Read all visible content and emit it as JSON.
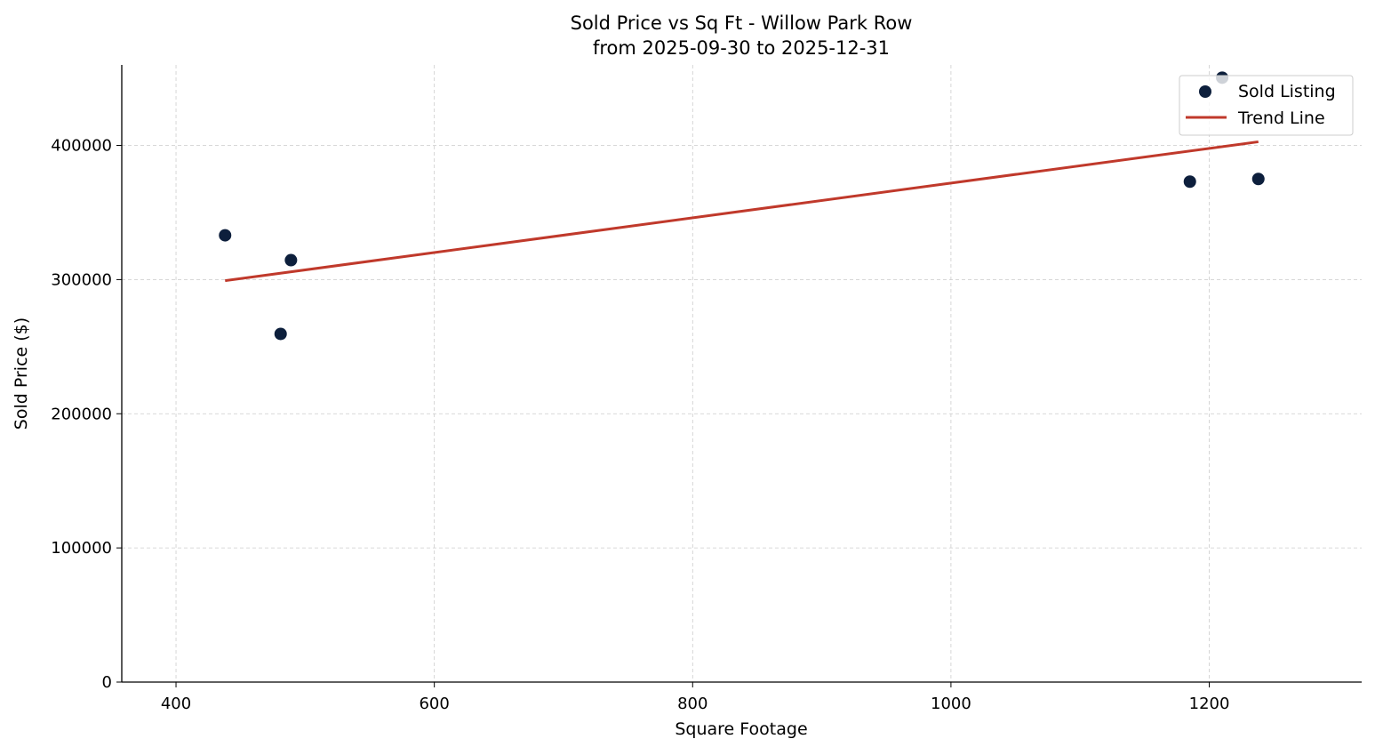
{
  "chart_data": {
    "type": "scatter",
    "title": "Sold Price vs Sq Ft - Willow Park Row",
    "subtitle": "from 2025-09-30 to 2025-12-31",
    "xlabel": "Square Footage",
    "ylabel": "Sold Price ($)",
    "xlim": [
      358,
      1318
    ],
    "ylim": [
      0,
      460000
    ],
    "xticks": [
      400,
      600,
      800,
      1000,
      1200
    ],
    "xtick_labels": [
      "400",
      "600",
      "800",
      "1000",
      "1200"
    ],
    "yticks": [
      0,
      100000,
      200000,
      300000,
      400000
    ],
    "ytick_labels": [
      "0",
      "100000",
      "200000",
      "300000",
      "400000"
    ],
    "grid": true,
    "legend_position": "top-right",
    "series": [
      {
        "name": "Sold Listing",
        "type": "scatter",
        "color": "#0d1f3c",
        "points": [
          {
            "x": 438,
            "y": 333000
          },
          {
            "x": 489,
            "y": 314500
          },
          {
            "x": 481,
            "y": 259500
          },
          {
            "x": 1185,
            "y": 373000
          },
          {
            "x": 1210,
            "y": 450500
          },
          {
            "x": 1238,
            "y": 375000
          }
        ]
      },
      {
        "name": "Trend Line",
        "type": "line",
        "color": "#c0392b",
        "points": [
          {
            "x": 438,
            "y": 299200
          },
          {
            "x": 1238,
            "y": 402700
          }
        ]
      }
    ]
  }
}
